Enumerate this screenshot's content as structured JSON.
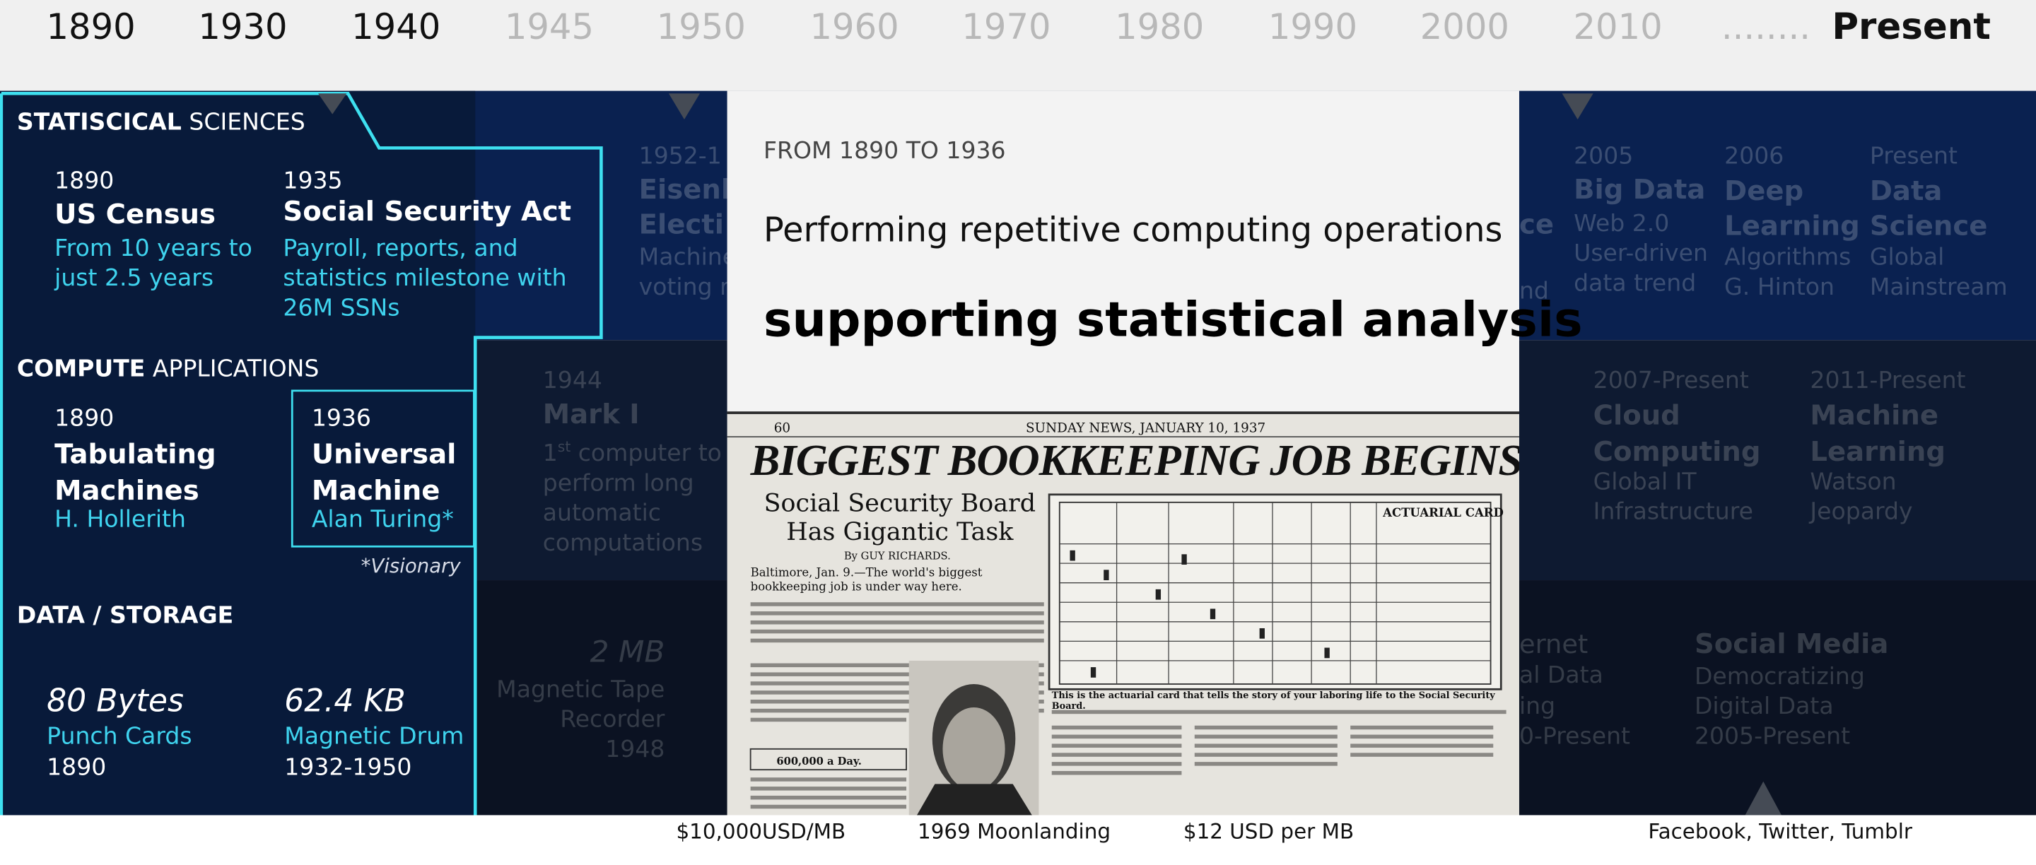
{
  "timeline": {
    "years": [
      "1890",
      "1930",
      "1940",
      "1945",
      "1950",
      "1960",
      "1970",
      "1980",
      "1990",
      "2000",
      "2010",
      "........",
      "Present"
    ]
  },
  "statistical": {
    "title_bold": "STATISCICAL",
    "title_rest": "SCIENCES",
    "items": [
      {
        "year": "1890",
        "title": "US Census",
        "detail": "From 10 years to just 2.5 years"
      },
      {
        "year": "1935",
        "title": "Social Security Act",
        "detail": "Payroll, reports, and statistics milestone with 26M SSNs"
      }
    ],
    "faded": [
      {
        "year": "1952-1",
        "title": "Eisenh",
        "title2": "Electi",
        "detail": "Machine",
        "detail2": "voting r"
      },
      {
        "year": "2005",
        "title": "Big Data",
        "detail": "Web 2.0 User-driven data trend"
      },
      {
        "year": "2006",
        "title": "Deep Learning",
        "detail": "Algorithms G. Hinton"
      },
      {
        "year": "Present",
        "title": "Data Science",
        "detail": "Global Mainstream"
      }
    ],
    "fragments": [
      "ce",
      "nd"
    ]
  },
  "compute": {
    "title_bold": "COMPUTE",
    "title_rest": "APPLICATIONS",
    "items": [
      {
        "year": "1890",
        "title": "Tabulating Machines",
        "detail": "H. Hollerith"
      },
      {
        "year": "1936",
        "title": "Universal Machine",
        "detail": "Alan Turing*"
      }
    ],
    "note": "*Visionary",
    "mark1": {
      "year": "1944",
      "title": "Mark I",
      "num": "1",
      "sup": "st",
      "detail": " computer to perform long automatic computations"
    },
    "faded": [
      {
        "year": "2007-Present",
        "title": "Cloud Computing",
        "detail": "Global IT Infrastructure"
      },
      {
        "year": "2011-Present",
        "title": "Machine Learning",
        "detail": "Watson Jeopardy"
      }
    ]
  },
  "storage": {
    "title": "DATA / STORAGE",
    "items": [
      {
        "size": "80 Bytes",
        "medium": "Punch Cards",
        "year": "1890"
      },
      {
        "size": "62.4 KB",
        "medium": "Magnetic Drum",
        "year": "1932-1950"
      }
    ],
    "tape": {
      "size": "2 MB",
      "medium": "Magnetic Tape Recorder",
      "year": "1948"
    },
    "internet": [
      "ernet",
      "al Data",
      "ing",
      "0-Present"
    ],
    "social": {
      "title": "Social Media",
      "detail": "Democratizing Digital Data",
      "year": "2005-Present"
    }
  },
  "card": {
    "eyebrow": "FROM 1890 TO 1936",
    "line1": "Performing repetitive computing operations",
    "line2": "supporting statistical analysis",
    "newspaper": {
      "page": "60",
      "dateline": "SUNDAY NEWS, JANUARY 10, 1937",
      "headline": "BIGGEST BOOKKEEPING JOB BEGINS",
      "subhead": "Social Security Board Has Gigantic Task",
      "byline": "By GUY RICHARDS.",
      "lede": "Baltimore, Jan. 9.—The world's biggest bookkeeping job is under way here.",
      "card_label": "ACTUARIAL CARD",
      "box": "600,000 a Day.",
      "caption": "This is the actuarial card that tells the story of your laboring life to the Social Security Board."
    }
  },
  "footer": [
    "$10,000USD/MB",
    "1969 Moonlanding",
    "$12 USD per MB",
    "Facebook, Twitter, Tumblr"
  ]
}
